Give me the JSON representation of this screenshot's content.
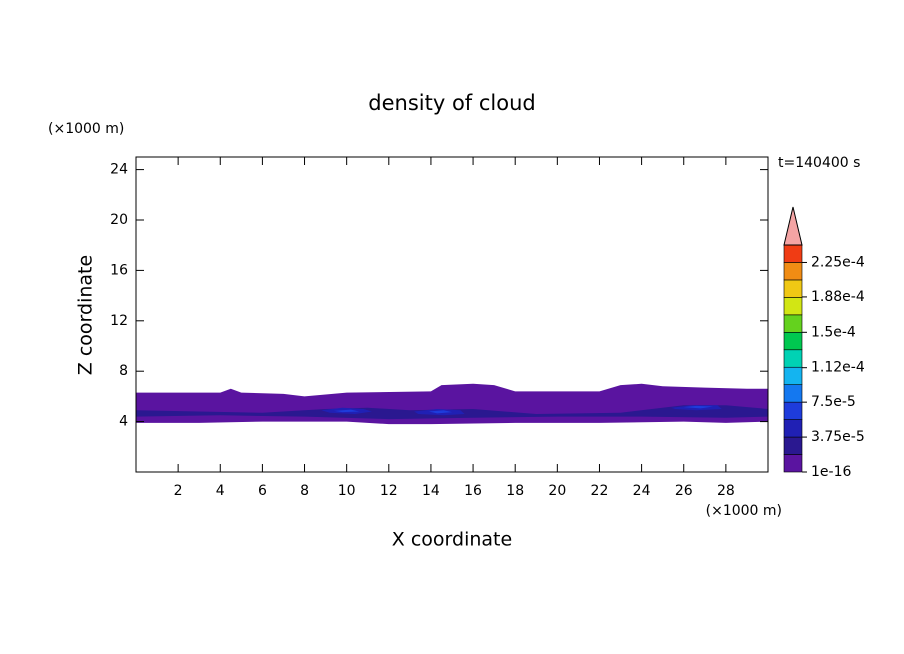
{
  "chart_data": {
    "type": "contour",
    "title": "density of cloud",
    "x_label": "X coordinate",
    "y_label": "Z coordinate",
    "x_unit": "(×1000 m)",
    "y_unit": "(×1000 m)",
    "time_label": "t=140400 s",
    "xlim": [
      0,
      30
    ],
    "ylim": [
      0,
      25
    ],
    "xticks": [
      2,
      4,
      6,
      8,
      10,
      12,
      14,
      16,
      18,
      20,
      22,
      24,
      26,
      28
    ],
    "yticks": [
      4,
      8,
      12,
      16,
      20,
      24
    ],
    "colorbar": {
      "levels": [
        1e-16,
        1.875e-05,
        3.75e-05,
        5.625e-05,
        7.5e-05,
        9.375e-05,
        0.0001125,
        0.00013125,
        0.00015,
        0.00016875,
        0.0001875,
        0.00020625,
        0.000225,
        0.00024375
      ],
      "colors": [
        "#5a14a0",
        "#2a1890",
        "#2020b4",
        "#1e3cdc",
        "#1478f0",
        "#14b4f0",
        "#00d2b4",
        "#00c850",
        "#64d21e",
        "#d2e614",
        "#f0c814",
        "#f08c14",
        "#f03c14"
      ],
      "ticks": [
        {
          "value": 1e-16,
          "label": "1e-16"
        },
        {
          "value": 3.75e-05,
          "label": "3.75e-5"
        },
        {
          "value": 7.5e-05,
          "label": "7.5e-5"
        },
        {
          "value": 0.000112,
          "label": "1.12e-4"
        },
        {
          "value": 0.00015,
          "label": "1.5e-4"
        },
        {
          "value": 0.000188,
          "label": "1.88e-4"
        },
        {
          "value": 0.000225,
          "label": "2.25e-4"
        }
      ]
    },
    "contours": [
      {
        "level": 1e-16,
        "x": [
          0,
          4,
          4.5,
          5,
          7,
          8,
          10,
          14,
          14.5,
          16,
          17,
          18,
          22,
          23,
          24,
          25,
          27,
          29,
          30,
          30,
          28,
          26,
          22,
          18,
          14,
          12,
          10,
          6,
          3,
          0
        ],
        "z": [
          6.3,
          6.3,
          6.6,
          6.3,
          6.2,
          6.0,
          6.3,
          6.4,
          6.9,
          7.0,
          6.9,
          6.4,
          6.4,
          6.9,
          7.0,
          6.8,
          6.7,
          6.6,
          6.6,
          4.0,
          3.9,
          4.0,
          3.9,
          3.9,
          3.8,
          3.8,
          4.0,
          4.0,
          3.9,
          3.9
        ]
      },
      {
        "level": 1.875e-05,
        "x": [
          0,
          3,
          6,
          9,
          11,
          13,
          16,
          19,
          23,
          26,
          28,
          30,
          30,
          28,
          24,
          20,
          16,
          12,
          8,
          4,
          0
        ],
        "z": [
          4.9,
          4.8,
          4.7,
          5.0,
          5.1,
          4.9,
          5.0,
          4.6,
          4.7,
          5.3,
          5.3,
          5.0,
          4.4,
          4.3,
          4.4,
          4.4,
          4.3,
          4.2,
          4.4,
          4.5,
          4.4
        ]
      },
      {
        "level": 3.75e-05,
        "x": [
          8.8,
          9.8,
          10.8,
          11.2,
          10.4,
          9.2
        ],
        "z": [
          4.9,
          5.1,
          5.0,
          4.8,
          4.6,
          4.7
        ]
      },
      {
        "level": 3.75e-05,
        "x": [
          13.2,
          14.3,
          15.4,
          15.6,
          14.6,
          13.4
        ],
        "z": [
          4.8,
          5.0,
          4.9,
          4.6,
          4.5,
          4.6
        ]
      },
      {
        "level": 3.75e-05,
        "x": [
          25.4,
          26.4,
          27.6,
          27.8,
          26.6,
          25.6
        ],
        "z": [
          5.1,
          5.3,
          5.3,
          5.0,
          4.9,
          5.0
        ]
      },
      {
        "level": 5.625e-05,
        "x": [
          9.4,
          10.2,
          10.6,
          9.8
        ],
        "z": [
          4.85,
          4.95,
          4.8,
          4.75
        ]
      },
      {
        "level": 5.625e-05,
        "x": [
          13.9,
          14.6,
          15.0,
          14.3
        ],
        "z": [
          4.8,
          4.9,
          4.75,
          4.65
        ]
      },
      {
        "level": 5.625e-05,
        "x": [
          26.0,
          26.6,
          27.4,
          26.8
        ],
        "z": [
          5.15,
          5.25,
          5.2,
          5.05
        ]
      }
    ]
  }
}
